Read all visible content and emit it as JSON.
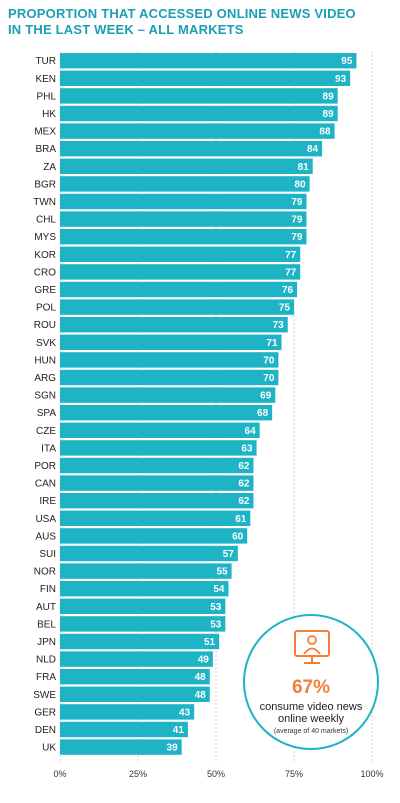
{
  "title_lines": [
    "PROPORTION THAT ACCESSED ONLINE NEWS VIDEO",
    "IN THE LAST WEEK – ALL MARKETS"
  ],
  "callout": {
    "percent": "67%",
    "line1": "consume video news",
    "line2": "online weekly",
    "note": "(average of 40 markets)",
    "icon": "video-presenter-icon",
    "border_color": "#1fb3c6",
    "percent_color": "#f07f3c"
  },
  "chart_data": {
    "type": "bar",
    "orientation": "horizontal",
    "categories": [
      "TUR",
      "KEN",
      "PHL",
      "HK",
      "MEX",
      "BRA",
      "ZA",
      "BGR",
      "TWN",
      "CHL",
      "MYS",
      "KOR",
      "CRO",
      "GRE",
      "POL",
      "ROU",
      "SVK",
      "HUN",
      "ARG",
      "SGN",
      "SPA",
      "CZE",
      "ITA",
      "POR",
      "CAN",
      "IRE",
      "USA",
      "AUS",
      "SUI",
      "NOR",
      "FIN",
      "AUT",
      "BEL",
      "JPN",
      "NLD",
      "FRA",
      "SWE",
      "GER",
      "DEN",
      "UK"
    ],
    "values": [
      95,
      93,
      89,
      89,
      88,
      84,
      81,
      80,
      79,
      79,
      79,
      77,
      77,
      76,
      75,
      73,
      71,
      70,
      70,
      69,
      68,
      64,
      63,
      62,
      62,
      62,
      61,
      60,
      57,
      55,
      54,
      53,
      53,
      51,
      49,
      48,
      48,
      43,
      41,
      39
    ],
    "xlim": [
      0,
      100
    ],
    "xticks": [
      "0%",
      "25%",
      "50%",
      "75%",
      "100%"
    ],
    "bar_color": "#1fb3c6",
    "label_color": "#ffffff",
    "gridlines": true
  }
}
